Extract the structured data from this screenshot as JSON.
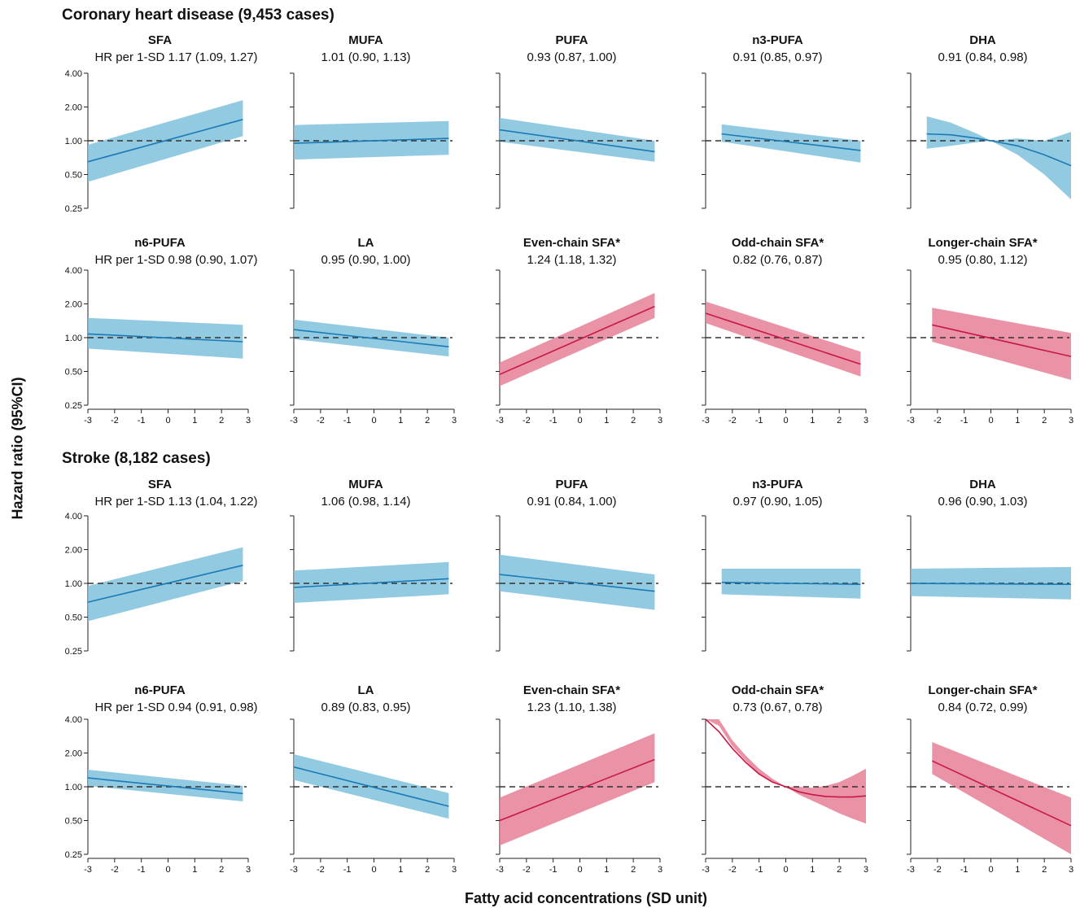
{
  "y_axis_label": "Hazard ratio (95%CI)",
  "x_axis_label": "Fatty acid concentrations (SD unit)",
  "sections": [
    {
      "title": "Coronary heart disease (9,453 cases)"
    },
    {
      "title": "Stroke (8,182 cases)"
    }
  ],
  "chart_data": {
    "type": "line",
    "description_scale": "log y axis",
    "yticks": [
      "4.00",
      "2.00",
      "1.00",
      "0.50",
      "0.25"
    ],
    "ytick_values": [
      4.0,
      2.0,
      1.0,
      0.5,
      0.25
    ],
    "xticks": [
      "-3",
      "-2",
      "-1",
      "0",
      "1",
      "2",
      "3"
    ],
    "xlim": [
      -3,
      3
    ],
    "ylim": [
      0.25,
      4.0
    ],
    "reference_line": 1.0,
    "colors": {
      "blue_fill": "#7fc1dd",
      "blue_line": "#1a7ab5",
      "red_fill": "#e67f96",
      "red_line": "#c8184a",
      "ref_line": "#333333"
    },
    "panels": [
      {
        "section": 0,
        "row": 0,
        "col": 0,
        "title": "SFA",
        "hr": "HR per 1-SD 1.17 (1.09, 1.27)",
        "color": "blue",
        "x": [
          -3,
          2.8
        ],
        "line": [
          0.65,
          1.55
        ],
        "lower": [
          0.43,
          1.1
        ],
        "upper": [
          0.92,
          2.3
        ]
      },
      {
        "section": 0,
        "row": 0,
        "col": 1,
        "title": "MUFA",
        "hr": "1.01 (0.90, 1.13)",
        "color": "blue",
        "x": [
          -3,
          2.8
        ],
        "line": [
          0.95,
          1.05
        ],
        "lower": [
          0.68,
          0.75
        ],
        "upper": [
          1.38,
          1.5
        ]
      },
      {
        "section": 0,
        "row": 0,
        "col": 2,
        "title": "PUFA",
        "hr": "0.93 (0.87, 1.00)",
        "color": "blue",
        "x": [
          -3,
          2.8
        ],
        "line": [
          1.25,
          0.8
        ],
        "lower": [
          0.98,
          0.65
        ],
        "upper": [
          1.6,
          1.0
        ]
      },
      {
        "section": 0,
        "row": 0,
        "col": 3,
        "title": "n3-PUFA",
        "hr": "0.91 (0.85, 0.97)",
        "color": "blue",
        "x": [
          -2.4,
          2.8
        ],
        "line": [
          1.15,
          0.82
        ],
        "lower": [
          0.98,
          0.64
        ],
        "upper": [
          1.4,
          1.0
        ]
      },
      {
        "section": 0,
        "row": 0,
        "col": 4,
        "title": "DHA",
        "hr": "0.91 (0.84, 0.98)",
        "color": "blue",
        "x": [
          -2.4,
          -1.5,
          -0.5,
          0,
          1,
          2,
          3
        ],
        "line": [
          1.15,
          1.13,
          1.05,
          1.0,
          0.9,
          0.75,
          0.6
        ],
        "lower": [
          0.85,
          0.9,
          0.97,
          1.0,
          0.75,
          0.5,
          0.3
        ],
        "upper": [
          1.65,
          1.45,
          1.15,
          1.0,
          1.05,
          1.0,
          1.2
        ]
      },
      {
        "section": 0,
        "row": 1,
        "col": 0,
        "title": "n6-PUFA",
        "hr": "HR per 1-SD 0.98 (0.90, 1.07)",
        "color": "blue",
        "x": [
          -3,
          2.8
        ],
        "line": [
          1.08,
          0.92
        ],
        "lower": [
          0.8,
          0.65
        ],
        "upper": [
          1.5,
          1.3
        ]
      },
      {
        "section": 0,
        "row": 1,
        "col": 1,
        "title": "LA",
        "hr": "0.95 (0.90, 1.00)",
        "color": "blue",
        "x": [
          -3,
          2.8
        ],
        "line": [
          1.18,
          0.83
        ],
        "lower": [
          0.97,
          0.68
        ],
        "upper": [
          1.45,
          1.0
        ]
      },
      {
        "section": 0,
        "row": 1,
        "col": 2,
        "title": "Even-chain SFA*",
        "hr": "1.24 (1.18, 1.32)",
        "color": "red",
        "x": [
          -3,
          2.8
        ],
        "line": [
          0.47,
          1.9
        ],
        "lower": [
          0.37,
          1.5
        ],
        "upper": [
          0.6,
          2.5
        ]
      },
      {
        "section": 0,
        "row": 1,
        "col": 3,
        "title": "Odd-chain SFA*",
        "hr": "0.82 (0.76, 0.87)",
        "color": "red",
        "x": [
          -3,
          2.8
        ],
        "line": [
          1.65,
          0.58
        ],
        "lower": [
          1.35,
          0.45
        ],
        "upper": [
          2.1,
          0.75
        ]
      },
      {
        "section": 0,
        "row": 1,
        "col": 4,
        "title": "Longer-chain SFA*",
        "hr": "0.95 (0.80, 1.12)",
        "color": "red",
        "x": [
          -2.2,
          3
        ],
        "line": [
          1.3,
          0.68
        ],
        "lower": [
          0.92,
          0.42
        ],
        "upper": [
          1.85,
          1.1
        ]
      },
      {
        "section": 1,
        "row": 0,
        "col": 0,
        "title": "SFA",
        "hr": "HR per 1-SD 1.13 (1.04, 1.22)",
        "color": "blue",
        "x": [
          -3,
          2.8
        ],
        "line": [
          0.68,
          1.45
        ],
        "lower": [
          0.46,
          1.05
        ],
        "upper": [
          0.95,
          2.1
        ]
      },
      {
        "section": 1,
        "row": 0,
        "col": 1,
        "title": "MUFA",
        "hr": "1.06 (0.98, 1.14)",
        "color": "blue",
        "x": [
          -3,
          2.8
        ],
        "line": [
          0.92,
          1.1
        ],
        "lower": [
          0.67,
          0.8
        ],
        "upper": [
          1.3,
          1.55
        ]
      },
      {
        "section": 1,
        "row": 0,
        "col": 2,
        "title": "PUFA",
        "hr": "0.91 (0.84, 1.00)",
        "color": "blue",
        "x": [
          -3,
          2.8
        ],
        "line": [
          1.2,
          0.85
        ],
        "lower": [
          0.85,
          0.58
        ],
        "upper": [
          1.8,
          1.2
        ]
      },
      {
        "section": 1,
        "row": 0,
        "col": 3,
        "title": "n3-PUFA",
        "hr": "0.97 (0.90, 1.05)",
        "color": "blue",
        "x": [
          -2.4,
          2.8
        ],
        "line": [
          1.02,
          0.98
        ],
        "lower": [
          0.8,
          0.73
        ],
        "upper": [
          1.35,
          1.35
        ]
      },
      {
        "section": 1,
        "row": 0,
        "col": 4,
        "title": "DHA",
        "hr": "0.96 (0.90, 1.03)",
        "color": "blue",
        "x": [
          -3,
          3
        ],
        "line": [
          1.0,
          0.98
        ],
        "lower": [
          0.77,
          0.72
        ],
        "upper": [
          1.35,
          1.4
        ]
      },
      {
        "section": 1,
        "row": 1,
        "col": 0,
        "title": "n6-PUFA",
        "hr": "HR per 1-SD 0.94 (0.91, 0.98)",
        "color": "blue",
        "x": [
          -3,
          2.8
        ],
        "line": [
          1.2,
          0.87
        ],
        "lower": [
          1.02,
          0.74
        ],
        "upper": [
          1.42,
          1.02
        ]
      },
      {
        "section": 1,
        "row": 1,
        "col": 1,
        "title": "LA",
        "hr": "0.89 (0.83, 0.95)",
        "color": "blue",
        "x": [
          -3,
          2.8
        ],
        "line": [
          1.5,
          0.67
        ],
        "lower": [
          1.15,
          0.52
        ],
        "upper": [
          1.95,
          0.88
        ]
      },
      {
        "section": 1,
        "row": 1,
        "col": 2,
        "title": "Even-chain SFA*",
        "hr": "1.23 (1.10, 1.38)",
        "color": "red",
        "x": [
          -3,
          2.8
        ],
        "line": [
          0.5,
          1.75
        ],
        "lower": [
          0.3,
          1.1
        ],
        "upper": [
          0.8,
          3.0
        ]
      },
      {
        "section": 1,
        "row": 1,
        "col": 3,
        "title": "Odd-chain SFA*",
        "hr": "0.73 (0.67, 0.78)",
        "color": "red",
        "x": [
          -3,
          -2.5,
          -2,
          -1.5,
          -1,
          -0.5,
          0,
          0.5,
          1,
          1.5,
          2,
          2.5,
          3
        ],
        "line": [
          4.0,
          3.1,
          2.2,
          1.65,
          1.3,
          1.1,
          1.0,
          0.9,
          0.85,
          0.82,
          0.81,
          0.81,
          0.83
        ],
        "lower": [
          4.0,
          3.5,
          2.3,
          1.7,
          1.3,
          1.1,
          1.0,
          0.85,
          0.75,
          0.66,
          0.58,
          0.52,
          0.47
        ],
        "upper": [
          4.0,
          4.0,
          2.6,
          1.9,
          1.45,
          1.18,
          1.0,
          1.0,
          0.98,
          1.02,
          1.1,
          1.25,
          1.45
        ]
      },
      {
        "section": 1,
        "row": 1,
        "col": 4,
        "title": "Longer-chain SFA*",
        "hr": "0.84 (0.72, 0.99)",
        "color": "red",
        "x": [
          -2.2,
          3
        ],
        "line": [
          1.7,
          0.45
        ],
        "lower": [
          1.3,
          0.25
        ],
        "upper": [
          2.5,
          0.8
        ]
      }
    ]
  }
}
